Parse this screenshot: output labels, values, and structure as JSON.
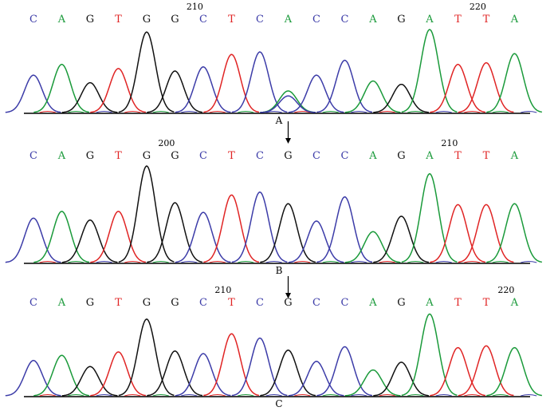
{
  "colors": {
    "C": "#3c3ca8",
    "A": "#1a9a3a",
    "G": "#111111",
    "T": "#e02424"
  },
  "panels": [
    {
      "label": "A",
      "bases": [
        "C",
        "A",
        "G",
        "T",
        "G",
        "G",
        "C",
        "T",
        "C",
        "A",
        "C",
        "C",
        "A",
        "G",
        "A",
        "T",
        "T",
        "A"
      ],
      "positions": [
        {
          "text": "210",
          "after": 5
        },
        {
          "text": "220",
          "after": 15
        }
      ],
      "heights": [
        0.45,
        0.58,
        0.36,
        0.53,
        0.97,
        0.5,
        0.55,
        0.7,
        0.73,
        0.26,
        0.45,
        0.63,
        0.38,
        0.34,
        1.0,
        0.58,
        0.6,
        0.71
      ],
      "arrow_below": true,
      "overlap": {
        "index": 9,
        "base": "C",
        "height": 0.2
      }
    },
    {
      "label": "B",
      "bases": [
        "C",
        "A",
        "G",
        "T",
        "G",
        "G",
        "C",
        "T",
        "C",
        "G",
        "C",
        "C",
        "A",
        "G",
        "A",
        "T",
        "T",
        "A"
      ],
      "positions": [
        {
          "text": "200",
          "after": 4
        },
        {
          "text": "210",
          "after": 14
        }
      ],
      "heights": [
        0.46,
        0.53,
        0.44,
        0.53,
        1.0,
        0.62,
        0.52,
        0.7,
        0.73,
        0.61,
        0.43,
        0.68,
        0.32,
        0.48,
        0.92,
        0.6,
        0.6,
        0.61
      ],
      "arrow_below": true
    },
    {
      "label": "C",
      "bases": [
        "C",
        "A",
        "G",
        "T",
        "G",
        "G",
        "C",
        "T",
        "C",
        "G",
        "C",
        "C",
        "A",
        "G",
        "A",
        "T",
        "T",
        "A"
      ],
      "positions": [
        {
          "text": "210",
          "after": 6
        },
        {
          "text": "220",
          "after": 16
        }
      ],
      "heights": [
        0.41,
        0.47,
        0.34,
        0.51,
        0.89,
        0.52,
        0.49,
        0.72,
        0.67,
        0.53,
        0.4,
        0.57,
        0.3,
        0.39,
        0.95,
        0.56,
        0.58,
        0.56
      ],
      "arrow_below": false
    }
  ]
}
